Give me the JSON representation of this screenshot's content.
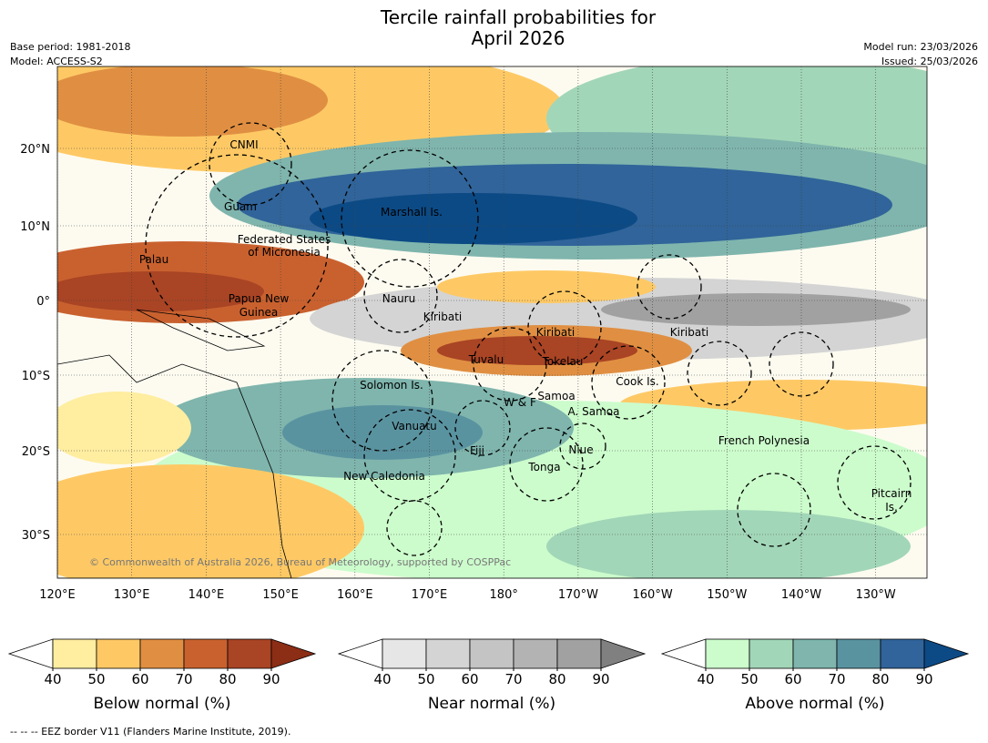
{
  "title_lines": [
    "Tercile rainfall probabilities for",
    "April 2026"
  ],
  "info_left": [
    "Base period: 1981-2018",
    "Model: ACCESS-S2"
  ],
  "info_right": [
    "Model run: 23/03/2026",
    "Issued: 25/03/2026"
  ],
  "map": {
    "lat_labels": [
      "20°N",
      "10°N",
      "0°",
      "10°S",
      "20°S",
      "30°S"
    ],
    "lon_labels": [
      "120°E",
      "130°E",
      "140°E",
      "150°E",
      "160°E",
      "170°E",
      "180°",
      "170°W",
      "160°W",
      "150°W",
      "140°W",
      "130°W"
    ],
    "region_labels": [
      "CNMI",
      "Guam",
      "Marshall Is.",
      "Federated States",
      "of Micronesia",
      "Palau",
      "Papua New",
      "Guinea",
      "Nauru",
      "Kiribati",
      "Kiribati",
      "Kiribati",
      "Tuvalu",
      "Tokelau",
      "Solomon Is.",
      "W & F",
      "Samoa",
      "A. Samoa",
      "Cook Is.",
      "Vanuatu",
      "Fiji",
      "Niue",
      "Tonga",
      "French Polynesia",
      "New Caledonia",
      "Pitcairn",
      "Is."
    ],
    "copyright": "© Commonwealth of Australia 2026, Bureau of Meteorology, supported by COSPPac"
  },
  "colorbars": [
    {
      "label": "Below normal (%)",
      "ticks": [
        40,
        50,
        60,
        70,
        80,
        90
      ],
      "colors": [
        "#ffeda0",
        "#fec965",
        "#e08f42",
        "#c9612f",
        "#a94424"
      ],
      "extend_color": "#8c2d15"
    },
    {
      "label": "Near normal (%)",
      "ticks": [
        40,
        50,
        60,
        70,
        80,
        90
      ],
      "colors": [
        "#e6e6e6",
        "#d4d4d4",
        "#c4c4c4",
        "#b3b3b3",
        "#a1a1a1"
      ],
      "extend_color": "#808080"
    },
    {
      "label": "Above normal (%)",
      "ticks": [
        40,
        50,
        60,
        70,
        80,
        90
      ],
      "colors": [
        "#ccfccc",
        "#a2d6b8",
        "#7fb5ad",
        "#5a93a0",
        "#30649a"
      ],
      "extend_color": "#0c4a85"
    }
  ],
  "footnote": "--  --  -- EEZ border V11 (Flanders Marine Institute, 2019)."
}
